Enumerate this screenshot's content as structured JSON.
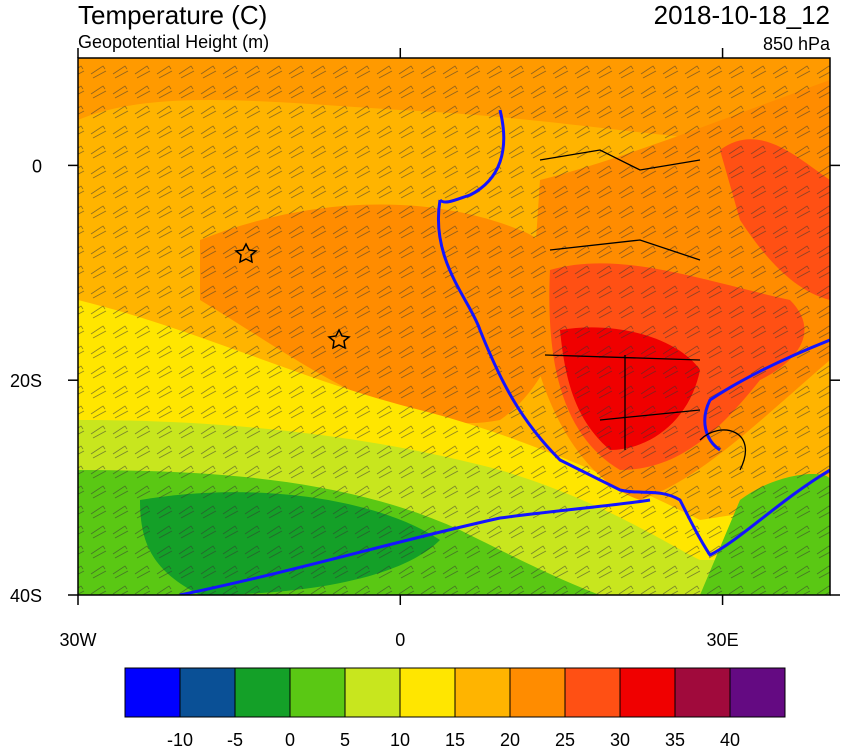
{
  "header": {
    "title": "Temperature (C)",
    "subtitle": "Geopotential Height (m)",
    "time": "2018-10-18_12",
    "level": "850 hPa"
  },
  "map": {
    "xlim": [
      -30,
      40
    ],
    "ylim": [
      -40,
      10
    ],
    "xticks": [
      {
        "value": -30,
        "label": "30W"
      },
      {
        "value": 0,
        "label": "0"
      },
      {
        "value": 30,
        "label": "30E"
      }
    ],
    "yticks": [
      {
        "value": 0,
        "label": "0"
      },
      {
        "value": -20,
        "label": "20S"
      },
      {
        "value": -40,
        "label": "40S"
      }
    ]
  },
  "colorbar": {
    "colors": [
      "#0000ff",
      "#0a5096",
      "#14a028",
      "#5ac814",
      "#c8e61e",
      "#ffe600",
      "#ffb400",
      "#ff8c00",
      "#ff5014",
      "#f00000",
      "#a00a3c",
      "#640a82"
    ],
    "levels": [
      -10,
      -5,
      0,
      5,
      10,
      15,
      20,
      25,
      30,
      35,
      40
    ]
  }
}
